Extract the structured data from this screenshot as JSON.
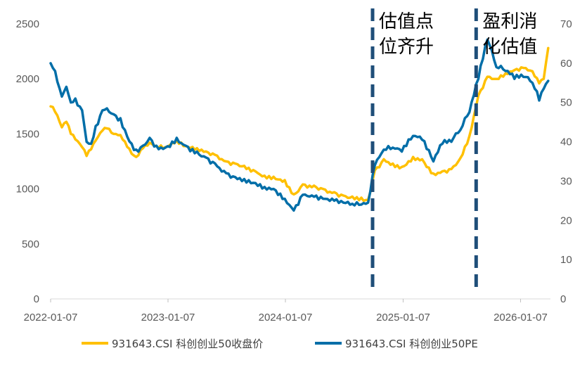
{
  "chart_data": {
    "type": "line",
    "title": "",
    "xlabel": "",
    "ylabel": "",
    "y_left": {
      "range": [
        0,
        2500
      ],
      "ticks": [
        "0",
        "500",
        "1000",
        "1500",
        "2000",
        "2500"
      ]
    },
    "y_right": {
      "range": [
        0,
        70
      ],
      "ticks": [
        "0",
        "10",
        "20",
        "30",
        "40",
        "50",
        "60",
        "70"
      ]
    },
    "x_range": [
      "2022-01-07",
      "2026-04-03"
    ],
    "x_ticks": [
      "2022-01-07",
      "2023-01-07",
      "2024-01-07",
      "2025-01-07",
      "2026-01-07"
    ],
    "grid": false,
    "legend_position": "bottom",
    "series": [
      {
        "name": "931643.CSI 科创创业50收盘价",
        "axis": "left",
        "color": "#FFC000",
        "points": [
          [
            "2022-01-07",
            1750
          ],
          [
            "2022-01-21",
            1700
          ],
          [
            "2022-02-11",
            1560
          ],
          [
            "2022-02-25",
            1610
          ],
          [
            "2022-03-11",
            1500
          ],
          [
            "2022-03-25",
            1450
          ],
          [
            "2022-04-15",
            1380
          ],
          [
            "2022-04-29",
            1300
          ],
          [
            "2022-05-13",
            1360
          ],
          [
            "2022-05-27",
            1440
          ],
          [
            "2022-06-17",
            1530
          ],
          [
            "2022-07-01",
            1550
          ],
          [
            "2022-07-22",
            1500
          ],
          [
            "2022-08-12",
            1490
          ],
          [
            "2022-08-26",
            1430
          ],
          [
            "2022-09-16",
            1320
          ],
          [
            "2022-09-30",
            1290
          ],
          [
            "2022-10-21",
            1370
          ],
          [
            "2022-11-11",
            1420
          ],
          [
            "2022-12-02",
            1390
          ],
          [
            "2022-12-30",
            1380
          ],
          [
            "2023-02-03",
            1440
          ],
          [
            "2023-03-03",
            1390
          ],
          [
            "2023-04-07",
            1370
          ],
          [
            "2023-05-05",
            1340
          ],
          [
            "2023-06-02",
            1310
          ],
          [
            "2023-07-07",
            1250
          ],
          [
            "2023-08-04",
            1230
          ],
          [
            "2023-09-01",
            1210
          ],
          [
            "2023-10-06",
            1160
          ],
          [
            "2023-11-03",
            1120
          ],
          [
            "2023-12-01",
            1110
          ],
          [
            "2024-01-05",
            1080
          ],
          [
            "2024-02-02",
            950
          ],
          [
            "2024-03-01",
            1040
          ],
          [
            "2024-04-05",
            1030
          ],
          [
            "2024-05-03",
            1000
          ],
          [
            "2024-06-07",
            970
          ],
          [
            "2024-07-05",
            940
          ],
          [
            "2024-08-02",
            930
          ],
          [
            "2024-08-30",
            920
          ],
          [
            "2024-09-20",
            900
          ],
          [
            "2024-10-11",
            1170
          ],
          [
            "2024-11-08",
            1270
          ],
          [
            "2024-12-06",
            1230
          ],
          [
            "2025-01-03",
            1200
          ],
          [
            "2025-02-07",
            1290
          ],
          [
            "2025-03-07",
            1270
          ],
          [
            "2025-04-11",
            1140
          ],
          [
            "2025-05-09",
            1160
          ],
          [
            "2025-06-06",
            1180
          ],
          [
            "2025-07-04",
            1280
          ],
          [
            "2025-08-01",
            1480
          ],
          [
            "2025-08-29",
            1850
          ],
          [
            "2025-09-26",
            2020
          ],
          [
            "2025-10-24",
            2000
          ],
          [
            "2025-11-21",
            2050
          ],
          [
            "2025-12-19",
            2080
          ],
          [
            "2026-01-16",
            2100
          ],
          [
            "2026-02-13",
            2070
          ],
          [
            "2026-03-06",
            1960
          ],
          [
            "2026-03-20",
            2000
          ],
          [
            "2026-04-03",
            2280
          ]
        ]
      },
      {
        "name": "931643.CSI 科创创业50PE",
        "axis": "right",
        "color": "#006EA8",
        "points": [
          [
            "2022-01-07",
            60
          ],
          [
            "2022-01-21",
            58
          ],
          [
            "2022-02-11",
            51.5
          ],
          [
            "2022-02-25",
            54
          ],
          [
            "2022-03-11",
            50
          ],
          [
            "2022-03-25",
            51
          ],
          [
            "2022-04-15",
            48
          ],
          [
            "2022-04-29",
            40
          ],
          [
            "2022-05-13",
            39.5
          ],
          [
            "2022-05-27",
            44
          ],
          [
            "2022-06-17",
            48
          ],
          [
            "2022-07-01",
            48.5
          ],
          [
            "2022-07-22",
            47
          ],
          [
            "2022-08-12",
            46
          ],
          [
            "2022-08-26",
            43
          ],
          [
            "2022-09-16",
            39.5
          ],
          [
            "2022-09-30",
            38
          ],
          [
            "2022-10-21",
            39
          ],
          [
            "2022-11-11",
            41
          ],
          [
            "2022-12-02",
            39
          ],
          [
            "2022-12-30",
            38.5
          ],
          [
            "2023-02-03",
            41
          ],
          [
            "2023-03-03",
            39
          ],
          [
            "2023-04-07",
            37.5
          ],
          [
            "2023-05-05",
            36
          ],
          [
            "2023-06-02",
            34.5
          ],
          [
            "2023-07-07",
            32
          ],
          [
            "2023-08-04",
            31
          ],
          [
            "2023-09-01",
            30.5
          ],
          [
            "2023-10-06",
            29.5
          ],
          [
            "2023-11-03",
            28.5
          ],
          [
            "2023-12-01",
            28
          ],
          [
            "2024-01-05",
            25.5
          ],
          [
            "2024-02-02",
            22.5
          ],
          [
            "2024-03-01",
            26.5
          ],
          [
            "2024-04-05",
            26
          ],
          [
            "2024-05-03",
            25.5
          ],
          [
            "2024-06-07",
            25
          ],
          [
            "2024-07-05",
            24.5
          ],
          [
            "2024-08-02",
            24.2
          ],
          [
            "2024-08-30",
            24
          ],
          [
            "2024-09-20",
            24.5
          ],
          [
            "2024-10-11",
            34
          ],
          [
            "2024-11-08",
            38
          ],
          [
            "2024-12-06",
            38.5
          ],
          [
            "2025-01-03",
            37.5
          ],
          [
            "2025-02-07",
            41.5
          ],
          [
            "2025-03-07",
            40.5
          ],
          [
            "2025-04-11",
            35
          ],
          [
            "2025-05-09",
            39.5
          ],
          [
            "2025-06-06",
            40
          ],
          [
            "2025-07-04",
            43
          ],
          [
            "2025-08-01",
            47.5
          ],
          [
            "2025-08-29",
            56
          ],
          [
            "2025-09-26",
            66
          ],
          [
            "2025-10-24",
            59
          ],
          [
            "2025-11-21",
            58
          ],
          [
            "2025-12-19",
            56
          ],
          [
            "2026-01-16",
            56.5
          ],
          [
            "2026-02-13",
            55
          ],
          [
            "2026-03-06",
            50.5
          ],
          [
            "2026-03-20",
            53.5
          ],
          [
            "2026-04-03",
            55.5
          ]
        ]
      }
    ],
    "markers": [
      {
        "date": "2024-10-04",
        "label": [
          "估值点",
          "位齐升"
        ]
      },
      {
        "date": "2025-08-22",
        "label": [
          "盈利消",
          "化估值"
        ]
      }
    ]
  }
}
